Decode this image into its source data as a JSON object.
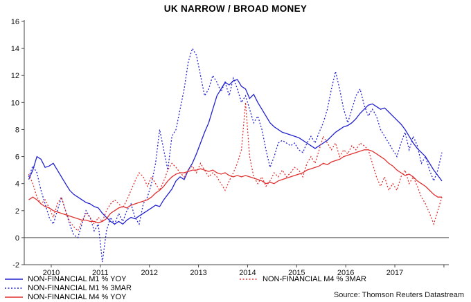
{
  "source": "Source: Thomson Reuters Datastream",
  "colors": {
    "blue": "#2121cf",
    "red": "#e03131",
    "zero_line": "#4d4d4d",
    "axis": "#444444"
  },
  "chart_data": {
    "type": "line",
    "title": "UK NARROW / BROAD MONEY",
    "xlabel": "",
    "ylabel": "",
    "grid": false,
    "legend_position": "bottom-left",
    "xlim": [
      2009.45,
      2018.1
    ],
    "ylim": [
      -2,
      16
    ],
    "x_start": 2009.5417,
    "x_step": "monthly",
    "x_ticks": [
      2010,
      2011,
      2012,
      2013,
      2014,
      2015,
      2016,
      2017
    ],
    "y_ticks": [
      -2,
      0,
      2,
      4,
      6,
      8,
      10,
      12,
      14,
      16
    ],
    "zero_line": 0,
    "series": [
      {
        "name": "NON-FINANCIAL M1 % YOY",
        "color": "#2121cf",
        "style": "solid",
        "values": [
          4.3,
          5.0,
          6.0,
          5.8,
          5.2,
          5.3,
          5.5,
          5.0,
          4.5,
          4.0,
          3.5,
          3.2,
          3.0,
          2.8,
          2.6,
          2.5,
          2.3,
          2.2,
          1.8,
          1.5,
          1.2,
          1.0,
          1.2,
          1.0,
          1.3,
          1.5,
          1.4,
          1.6,
          1.8,
          2.0,
          2.2,
          2.4,
          2.3,
          2.8,
          3.2,
          3.6,
          4.2,
          4.5,
          4.3,
          5.0,
          5.5,
          6.2,
          7.0,
          7.8,
          8.5,
          9.5,
          10.5,
          11.0,
          11.5,
          11.3,
          11.6,
          11.7,
          11.2,
          11.0,
          10.3,
          10.6,
          10.0,
          9.5,
          9.0,
          8.5,
          8.2,
          8.0,
          7.8,
          7.7,
          7.6,
          7.5,
          7.4,
          7.2,
          7.0,
          6.8,
          6.6,
          6.8,
          7.0,
          7.2,
          7.5,
          7.8,
          8.0,
          8.2,
          8.3,
          8.5,
          8.8,
          9.2,
          9.5,
          9.8,
          9.9,
          9.7,
          9.5,
          9.6,
          9.3,
          9.0,
          8.7,
          8.4,
          8.0,
          7.5,
          7.0,
          6.6,
          6.3,
          6.0,
          5.5,
          5.0,
          4.6,
          4.2
        ]
      },
      {
        "name": "NON-FINANCIAL M1 % 3MAR",
        "color": "#2121cf",
        "style": "dotted",
        "values": [
          4.5,
          5.3,
          4.8,
          3.5,
          2.5,
          1.5,
          1.0,
          2.0,
          3.0,
          2.0,
          1.0,
          0.2,
          0.0,
          1.0,
          2.0,
          1.5,
          0.5,
          1.0,
          -1.8,
          0.5,
          1.5,
          1.0,
          1.8,
          1.2,
          2.0,
          2.5,
          1.5,
          1.0,
          2.5,
          3.0,
          4.0,
          5.5,
          8.0,
          6.5,
          5.0,
          7.5,
          8.0,
          9.5,
          11.0,
          13.0,
          14.0,
          13.5,
          12.0,
          10.5,
          11.0,
          12.0,
          11.5,
          10.8,
          11.5,
          10.5,
          11.8,
          11.0,
          10.0,
          10.5,
          9.5,
          8.5,
          9.0,
          8.0,
          6.5,
          5.2,
          6.0,
          7.0,
          7.2,
          7.0,
          6.8,
          7.0,
          6.5,
          6.3,
          7.0,
          7.5,
          7.0,
          7.8,
          8.5,
          9.5,
          11.0,
          12.3,
          11.0,
          9.5,
          8.5,
          9.5,
          10.5,
          11.0,
          9.8,
          9.0,
          9.5,
          9.0,
          8.0,
          7.5,
          7.0,
          6.5,
          6.0,
          7.0,
          7.8,
          6.5,
          7.5,
          6.8,
          5.5,
          6.0,
          5.0,
          4.2,
          5.0,
          6.3
        ]
      },
      {
        "name": "NON-FINANCIAL M4 % YOY",
        "color": "#e03131",
        "style": "solid",
        "values": [
          2.8,
          3.0,
          2.8,
          2.5,
          2.3,
          2.2,
          2.0,
          1.9,
          1.8,
          1.7,
          1.6,
          1.5,
          1.4,
          1.3,
          1.3,
          1.2,
          1.2,
          1.1,
          1.2,
          1.4,
          1.8,
          2.0,
          2.2,
          2.3,
          2.2,
          2.4,
          2.5,
          2.6,
          2.7,
          2.8,
          3.0,
          3.3,
          3.5,
          3.8,
          4.2,
          4.5,
          4.7,
          4.8,
          4.8,
          4.9,
          5.0,
          5.0,
          5.1,
          5.0,
          4.9,
          5.0,
          4.8,
          4.7,
          4.8,
          4.6,
          4.5,
          4.6,
          4.5,
          4.6,
          4.5,
          4.4,
          4.3,
          4.2,
          4.0,
          4.1,
          4.0,
          4.2,
          4.3,
          4.4,
          4.5,
          4.6,
          4.7,
          4.8,
          5.0,
          5.1,
          5.2,
          5.3,
          5.5,
          5.4,
          5.6,
          5.7,
          5.8,
          6.0,
          6.1,
          6.2,
          6.3,
          6.4,
          6.5,
          6.5,
          6.4,
          6.2,
          6.0,
          5.8,
          5.5,
          5.3,
          5.0,
          4.8,
          4.6,
          4.7,
          4.5,
          4.2,
          4.0,
          3.8,
          3.5,
          3.2,
          3.0,
          3.0
        ]
      },
      {
        "name": "NON-FINANCIAL M4 % 3MAR",
        "color": "#e03131",
        "style": "dotted",
        "values": [
          4.7,
          4.0,
          3.0,
          2.5,
          2.8,
          2.2,
          1.5,
          2.5,
          3.0,
          2.0,
          1.2,
          0.8,
          0.5,
          1.2,
          1.8,
          1.5,
          1.0,
          1.5,
          1.2,
          2.0,
          2.5,
          2.8,
          2.5,
          2.2,
          2.8,
          3.5,
          4.2,
          4.8,
          4.5,
          3.8,
          4.5,
          4.0,
          3.5,
          4.2,
          5.0,
          5.5,
          5.2,
          4.8,
          4.5,
          5.0,
          5.3,
          4.8,
          5.5,
          5.0,
          4.5,
          4.8,
          4.5,
          4.0,
          3.5,
          4.2,
          4.8,
          5.5,
          6.5,
          10.0,
          6.0,
          4.5,
          4.0,
          4.5,
          3.8,
          4.2,
          4.8,
          4.5,
          5.0,
          4.5,
          4.8,
          5.2,
          5.0,
          4.5,
          5.5,
          6.0,
          5.5,
          6.5,
          7.5,
          7.0,
          6.5,
          7.0,
          6.0,
          6.5,
          6.2,
          6.8,
          6.5,
          7.0,
          6.8,
          6.5,
          5.5,
          4.5,
          3.8,
          4.5,
          3.5,
          4.0,
          3.5,
          4.5,
          5.0,
          4.0,
          4.5,
          3.8,
          3.0,
          2.5,
          1.8,
          1.0,
          2.0,
          3.0
        ]
      }
    ]
  }
}
